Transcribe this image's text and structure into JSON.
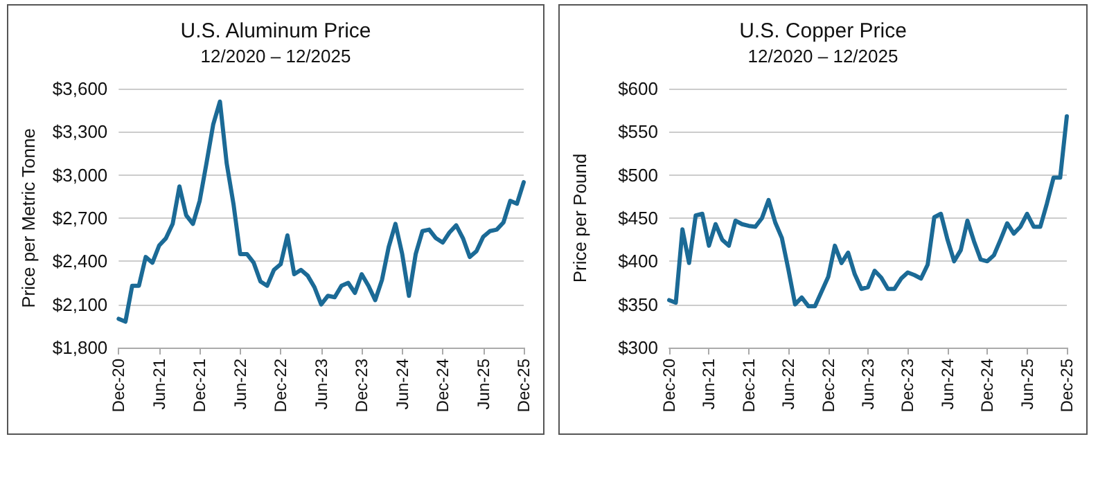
{
  "chart_data": [
    {
      "type": "line",
      "title": "U.S. Aluminum Price",
      "subtitle": "12/2020 – 12/2025",
      "ylabel": "Price per Metric Tonne",
      "categories": [
        "Dec-20",
        null,
        null,
        null,
        null,
        null,
        "Jun-21",
        null,
        null,
        null,
        null,
        null,
        "Dec-21",
        null,
        null,
        null,
        null,
        null,
        "Jun-22",
        null,
        null,
        null,
        null,
        null,
        "Dec-22",
        null,
        null,
        null,
        null,
        null,
        "Jun-23",
        null,
        null,
        null,
        null,
        null,
        "Dec-23",
        null,
        null,
        null,
        null,
        null,
        "Jun-24",
        null,
        null,
        null,
        null,
        null,
        "Dec-24",
        null,
        null,
        null,
        null,
        null,
        "Jun-25",
        null,
        null,
        null,
        null,
        null,
        "Dec-25"
      ],
      "series": [
        {
          "color": "#1b6a96",
          "values": [
            2000,
            1980,
            2230,
            2230,
            2430,
            2390,
            2510,
            2560,
            2660,
            2920,
            2720,
            2660,
            2820,
            3080,
            3350,
            3510,
            3080,
            2800,
            2450,
            2450,
            2390,
            2260,
            2230,
            2340,
            2380,
            2580,
            2310,
            2340,
            2300,
            2220,
            2100,
            2160,
            2150,
            2230,
            2250,
            2180,
            2310,
            2230,
            2130,
            2270,
            2500,
            2660,
            2450,
            2160,
            2450,
            2610,
            2620,
            2560,
            2530,
            2600,
            2650,
            2560,
            2430,
            2470,
            2570,
            2610,
            2620,
            2670,
            2820,
            2800,
            2950
          ]
        }
      ],
      "ylim": [
        1800,
        3600
      ],
      "yticks": [
        {
          "value": 1800,
          "label": "$1,800"
        },
        {
          "value": 2100,
          "label": "$2,100"
        },
        {
          "value": 2400,
          "label": "$2,400"
        },
        {
          "value": 2700,
          "label": "$2,700"
        },
        {
          "value": 3000,
          "label": "$3,000"
        },
        {
          "value": 3300,
          "label": "$3,300"
        },
        {
          "value": 3600,
          "label": "$3,600"
        }
      ],
      "grid": "y",
      "marker": "none",
      "line_style": "solid"
    },
    {
      "type": "line",
      "title": "U.S. Copper Price",
      "subtitle": "12/2020 – 12/2025",
      "ylabel": "Price per Pound",
      "categories": [
        "Dec-20",
        null,
        null,
        null,
        null,
        null,
        "Jun-21",
        null,
        null,
        null,
        null,
        null,
        "Dec-21",
        null,
        null,
        null,
        null,
        null,
        "Jun-22",
        null,
        null,
        null,
        null,
        null,
        "Dec-22",
        null,
        null,
        null,
        null,
        null,
        "Jun-23",
        null,
        null,
        null,
        null,
        null,
        "Dec-23",
        null,
        null,
        null,
        null,
        null,
        "Jun-24",
        null,
        null,
        null,
        null,
        null,
        "Dec-24",
        null,
        null,
        null,
        null,
        null,
        "Jun-25",
        null,
        null,
        null,
        null,
        null,
        "Dec-25"
      ],
      "series": [
        {
          "color": "#1b6a96",
          "values": [
            355,
            352,
            437,
            398,
            453,
            455,
            418,
            443,
            425,
            418,
            447,
            443,
            441,
            440,
            450,
            471,
            445,
            427,
            390,
            350,
            358,
            348,
            348,
            365,
            382,
            418,
            398,
            410,
            385,
            368,
            370,
            389,
            381,
            368,
            368,
            380,
            387,
            384,
            380,
            396,
            451,
            455,
            425,
            400,
            413,
            447,
            423,
            402,
            400,
            407,
            425,
            444,
            432,
            440,
            455,
            440,
            440,
            467,
            497,
            497,
            568
          ]
        }
      ],
      "ylim": [
        300,
        600
      ],
      "yticks": [
        {
          "value": 300,
          "label": "$300"
        },
        {
          "value": 350,
          "label": "$350"
        },
        {
          "value": 400,
          "label": "$400"
        },
        {
          "value": 450,
          "label": "$450"
        },
        {
          "value": 500,
          "label": "$500"
        },
        {
          "value": 550,
          "label": "$550"
        },
        {
          "value": 600,
          "label": "$600"
        }
      ],
      "grid": "y",
      "marker": "none",
      "line_style": "solid"
    }
  ]
}
